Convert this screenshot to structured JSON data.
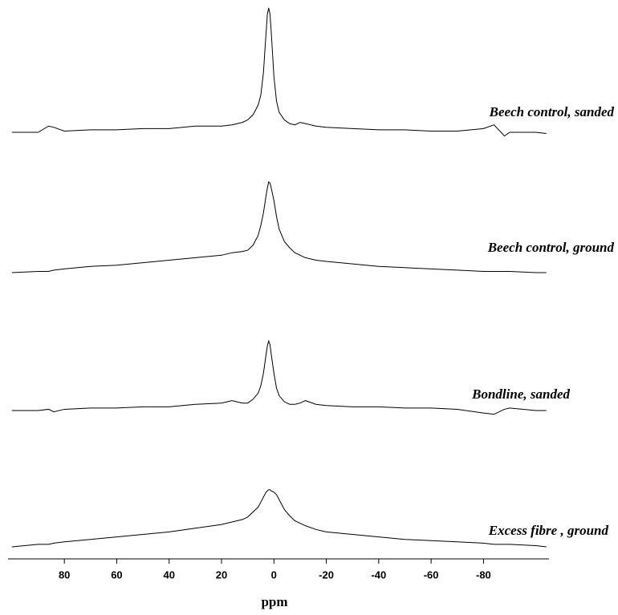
{
  "chart_data": {
    "type": "line",
    "x_label": "ppm",
    "x": [
      100,
      90,
      86,
      84,
      80,
      70,
      60,
      50,
      40,
      30,
      20,
      16,
      12,
      10,
      8,
      6,
      5,
      4,
      3,
      2.5,
      2,
      1.5,
      1,
      0,
      -1,
      -2,
      -4,
      -6,
      -8,
      -10,
      -12,
      -16,
      -20,
      -30,
      -40,
      -50,
      -60,
      -70,
      -80,
      -84,
      -88,
      -90,
      -100,
      -104
    ],
    "xlim": [
      101.5,
      -105
    ],
    "xticks": [
      80,
      60,
      40,
      20,
      0,
      -20,
      -40,
      -60,
      -80
    ],
    "ylim": [
      0,
      100
    ],
    "series": [
      {
        "name": "Beech control, sanded",
        "color": "#000000",
        "values": [
          0,
          0,
          5,
          4,
          1,
          2,
          2,
          3,
          3,
          5,
          5,
          6,
          8,
          10,
          14,
          22,
          30,
          48,
          80,
          95,
          100,
          95,
          80,
          45,
          25,
          16,
          10,
          7,
          6,
          8,
          7,
          5,
          4,
          3,
          2,
          2,
          1,
          1,
          3,
          6,
          -3,
          0,
          0,
          -1
        ]
      },
      {
        "name": "Beech control, ground",
        "color": "#000000",
        "values": [
          0,
          1,
          1,
          2,
          3,
          5,
          6,
          8,
          10,
          12,
          14,
          16,
          17,
          18,
          22,
          30,
          38,
          48,
          62,
          68,
          73,
          72,
          68,
          58,
          45,
          35,
          25,
          20,
          16,
          14,
          12,
          10,
          9,
          7,
          5,
          4,
          3,
          2,
          1,
          1,
          1,
          1,
          0,
          0
        ]
      },
      {
        "name": "Bondline, sanded",
        "color": "#000000",
        "values": [
          0,
          0,
          1,
          -1,
          1,
          2,
          2,
          3,
          3,
          5,
          6,
          8,
          6,
          6,
          9,
          14,
          20,
          30,
          45,
          52,
          56,
          53,
          45,
          30,
          18,
          12,
          7,
          5,
          5,
          6,
          8,
          5,
          4,
          3,
          3,
          2,
          2,
          1,
          -2,
          -3,
          1,
          2,
          0,
          0
        ]
      },
      {
        "name": "Excess fibre , ground",
        "color": "#000000",
        "values": [
          0,
          2,
          2,
          3,
          4,
          6,
          8,
          10,
          12,
          15,
          18,
          20,
          22,
          24,
          28,
          32,
          36,
          40,
          44,
          45,
          46,
          46,
          45,
          44,
          42,
          38,
          30,
          25,
          21,
          19,
          17,
          14,
          12,
          10,
          8,
          6,
          5,
          4,
          3,
          2,
          2,
          2,
          1,
          0
        ]
      }
    ]
  }
}
